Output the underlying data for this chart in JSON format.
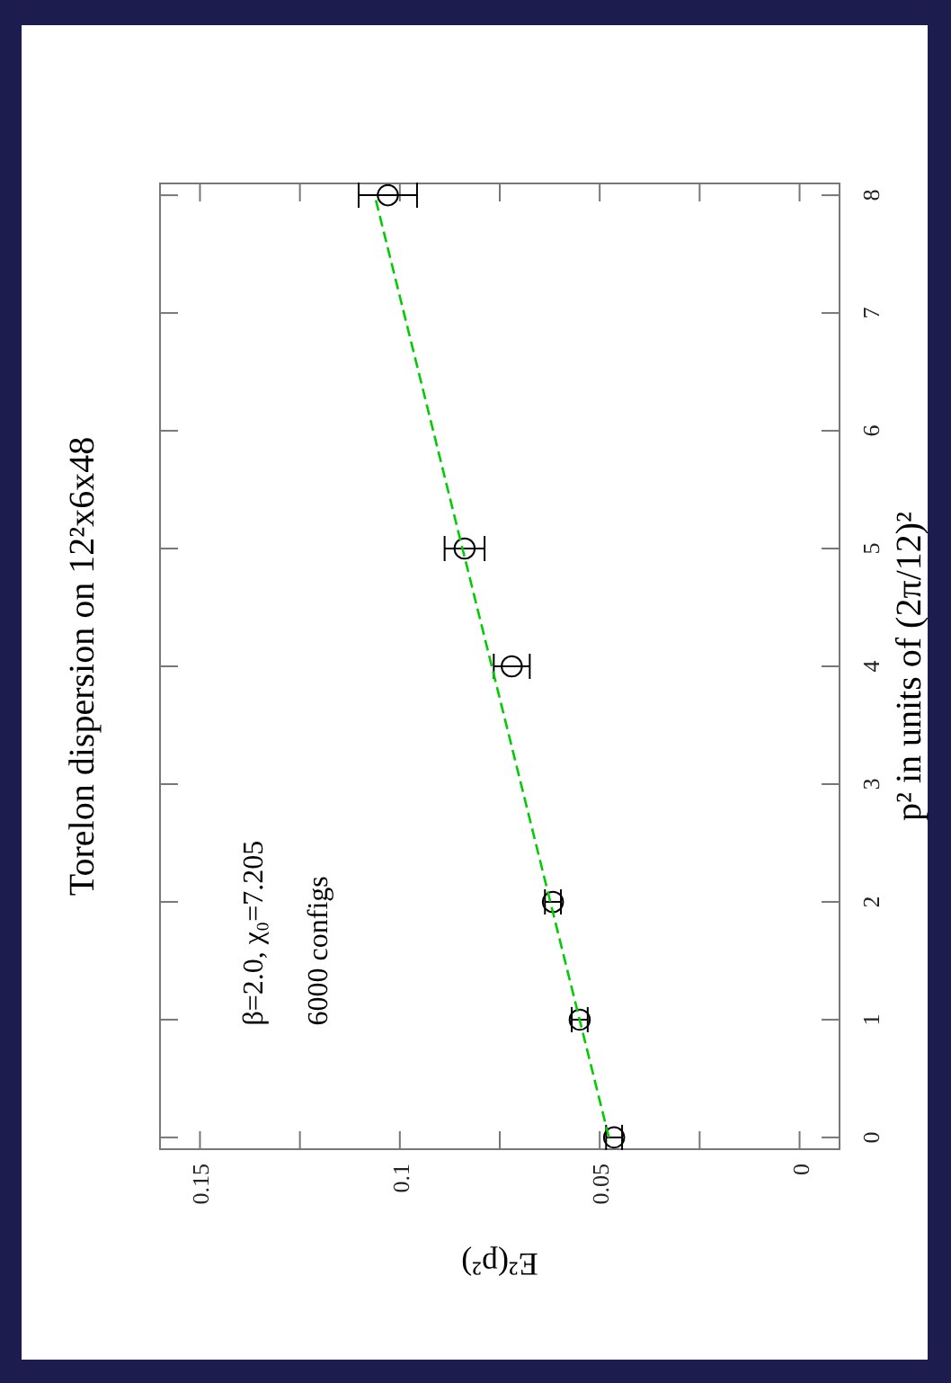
{
  "chart_data": {
    "type": "scatter",
    "title": "Torelon dispersion on 12²x6x48",
    "xlabel": "E²(p²)",
    "ylabel": "p² in units of (2π/12)²",
    "annotations": [
      "β=2.0,  χ₀=7.205",
      "6000 configs"
    ],
    "series": [
      {
        "color": "#000000",
        "marker": "circle",
        "x": [
          0.0464,
          0.055,
          0.0617,
          0.072,
          0.0838,
          0.103
        ],
        "values": [
          0,
          1,
          2,
          4,
          5,
          8
        ],
        "xerrors": [
          0.002,
          0.002,
          0.002,
          0.0045,
          0.005,
          0.0073
        ]
      },
      {
        "type": "line",
        "color": "#00cc00",
        "x": [
          0.0477,
          0.1063
        ],
        "values": [
          0,
          8
        ],
        "line_style": "dashed",
        "marker": "none"
      }
    ],
    "xlim": [
      0.16,
      -0.01
    ],
    "xticks": [
      0.15,
      {
        "value": 0.125,
        "label": null
      },
      0.1,
      {
        "value": 0.075,
        "label": null
      },
      0.05,
      {
        "value": 0.025,
        "label": null
      },
      0
    ],
    "ylim": [
      -0.1,
      8.1
    ],
    "yticks": [
      0,
      1,
      2,
      3,
      4,
      5,
      6,
      7,
      8
    ],
    "grid": false
  }
}
